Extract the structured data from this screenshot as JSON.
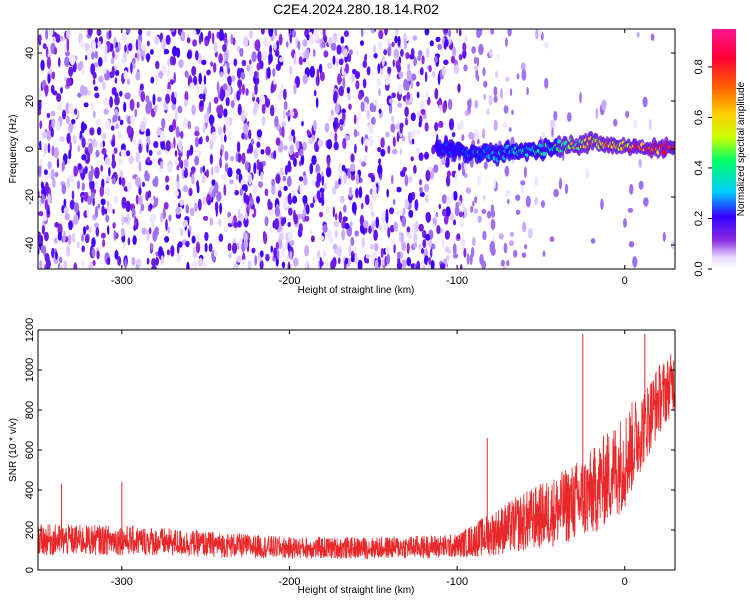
{
  "figure_title": "C2E4.2024.280.18.14.R02",
  "chart_data": [
    {
      "type": "heatmap",
      "xlabel": "Height of straight line (km)",
      "ylabel": "Frequency (Hz)",
      "xlim": [
        -350,
        30
      ],
      "ylim": [
        -50,
        50
      ],
      "xticks": [
        -300,
        -200,
        -100,
        0
      ],
      "yticks": [
        -40,
        -20,
        0,
        20,
        40
      ],
      "colorbar": {
        "label": "Normalized spectral amplitude",
        "range": [
          0,
          0.95
        ],
        "ticks": [
          0.0,
          0.2,
          0.4,
          0.6,
          0.8
        ],
        "colors": [
          "#ffffff",
          "#e7d6ff",
          "#8a2be2",
          "#3300ff",
          "#00ccff",
          "#00ff66",
          "#ccff00",
          "#ffcc00",
          "#ff6600",
          "#ff0033",
          "#ff1493"
        ]
      },
      "ridge": {
        "description_points": [
          {
            "x": -110,
            "y": 0
          },
          {
            "x": -80,
            "y": -2
          },
          {
            "x": -60,
            "y": -1
          },
          {
            "x": -40,
            "y": 1
          },
          {
            "x": -20,
            "y": 3
          },
          {
            "x": 0,
            "y": 1
          },
          {
            "x": 30,
            "y": 0
          }
        ]
      },
      "noise_region_x": [
        -350,
        -95
      ],
      "fade_region_x": [
        -95,
        -40
      ]
    },
    {
      "type": "line",
      "xlabel": "Height of straight line (km)",
      "ylabel": "SNR (10 * v/v)",
      "xlim": [
        -350,
        30
      ],
      "ylim": [
        0,
        1200
      ],
      "xticks": [
        -300,
        -200,
        -100,
        0
      ],
      "yticks": [
        0,
        200,
        400,
        600,
        800,
        1000,
        1200
      ],
      "color": "#e8282a",
      "envelope": [
        {
          "x": -350,
          "mean": 150,
          "spread": 80
        },
        {
          "x": -300,
          "mean": 150,
          "spread": 75
        },
        {
          "x": -250,
          "mean": 130,
          "spread": 65
        },
        {
          "x": -200,
          "mean": 110,
          "spread": 55
        },
        {
          "x": -150,
          "mean": 110,
          "spread": 55
        },
        {
          "x": -100,
          "mean": 120,
          "spread": 60
        },
        {
          "x": -80,
          "mean": 180,
          "spread": 110
        },
        {
          "x": -60,
          "mean": 240,
          "spread": 150
        },
        {
          "x": -40,
          "mean": 300,
          "spread": 180
        },
        {
          "x": -20,
          "mean": 380,
          "spread": 220
        },
        {
          "x": 0,
          "mean": 550,
          "spread": 250
        },
        {
          "x": 10,
          "mean": 700,
          "spread": 200
        },
        {
          "x": 20,
          "mean": 850,
          "spread": 180
        },
        {
          "x": 30,
          "mean": 950,
          "spread": 150
        }
      ],
      "peaks": [
        {
          "x": -336,
          "y": 430
        },
        {
          "x": -300,
          "y": 440
        },
        {
          "x": -82,
          "y": 660
        },
        {
          "x": -25,
          "y": 1180
        },
        {
          "x": 12,
          "y": 1180
        }
      ]
    }
  ]
}
